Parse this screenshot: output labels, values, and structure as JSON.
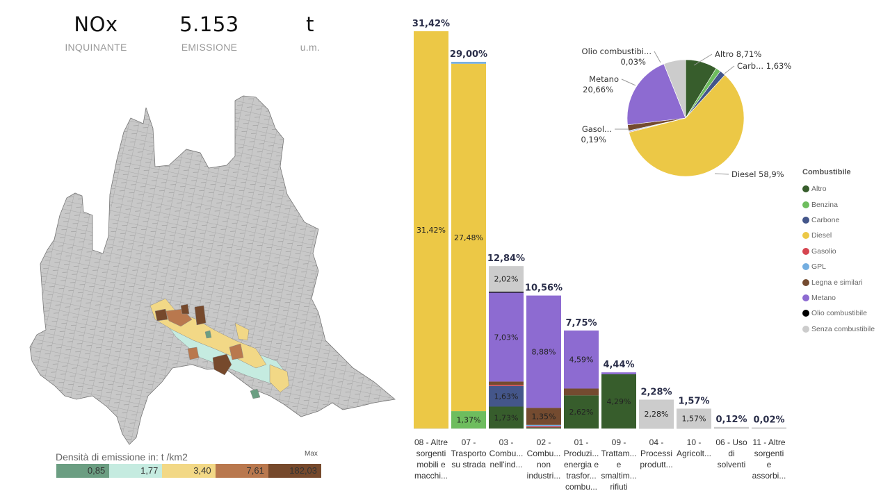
{
  "kpis": [
    {
      "value": "NOx",
      "label": "INQUINANTE"
    },
    {
      "value": "5.153",
      "label": "EMISSIONE"
    },
    {
      "value": "t",
      "label": "u.m."
    }
  ],
  "map": {
    "region": "Lombardia",
    "legend_title": "Densità di emissione in:  t /km2",
    "legend_max_label": "Max",
    "classes": [
      {
        "value": "0,85",
        "color": "#6b9e82"
      },
      {
        "value": "1,77",
        "color": "#c5ebe0"
      },
      {
        "value": "3,40",
        "color": "#f2d886"
      },
      {
        "value": "7,61",
        "color": "#b9784e"
      },
      {
        "value": "182,03",
        "color": "#76492c"
      }
    ],
    "base_color": "#c8c8c8"
  },
  "fuels": {
    "legend_title": "Combustibile",
    "items": [
      {
        "name": "Altro",
        "color": "#375d2c"
      },
      {
        "name": "Benzina",
        "color": "#6ebd5e"
      },
      {
        "name": "Carbone",
        "color": "#44568a"
      },
      {
        "name": "Diesel",
        "color": "#ecc846"
      },
      {
        "name": "Gasolio",
        "color": "#d64550"
      },
      {
        "name": "GPL",
        "color": "#74aee0"
      },
      {
        "name": "Legna e similari",
        "color": "#744b30"
      },
      {
        "name": "Metano",
        "color": "#8d6bd1"
      },
      {
        "name": "Olio combustibile",
        "color": "#000000"
      },
      {
        "name": "Senza combustibile",
        "color": "#cccccc"
      }
    ]
  },
  "chart_data": [
    {
      "type": "bar",
      "stacked": true,
      "title": "",
      "xlabel": "",
      "ylabel": "",
      "ylim": [
        0,
        31.42
      ],
      "categories": [
        "08 - Altre sorgenti mobili e macchi...",
        "07 - Trasporto su strada",
        "03 - Combu... nell'ind...",
        "02 - Combu... non industri...",
        "01 - Produzi... energia e trasfor... combu...",
        "09 - Trattam... e smaltim... rifiuti",
        "04 - Processi produtt...",
        "10 - Agricolt...",
        "06 - Uso di solventi",
        "11 - Altre sorgenti e assorbi..."
      ],
      "category_lines": [
        [
          "08 - Altre",
          "sorgenti",
          "mobili e",
          "macchi..."
        ],
        [
          "07 -",
          "Trasporto",
          "su strada"
        ],
        [
          "03 -",
          "Combu...",
          "nell'ind..."
        ],
        [
          "02 -",
          "Combu...",
          "non",
          "industri..."
        ],
        [
          "01 -",
          "Produzi...",
          "energia e",
          "trasfor...",
          "combu..."
        ],
        [
          "09 -",
          "Trattam...",
          "e",
          "smaltim...",
          "rifiuti"
        ],
        [
          "04 -",
          "Processi",
          "produtt..."
        ],
        [
          "10 -",
          "Agricolt..."
        ],
        [
          "06 - Uso",
          "di",
          "solventi"
        ],
        [
          "11 - Altre",
          "sorgenti",
          "e",
          "assorbi..."
        ]
      ],
      "totals": [
        31.42,
        29.0,
        12.84,
        10.56,
        7.75,
        4.44,
        2.28,
        1.57,
        0.12,
        0.02
      ],
      "total_labels": [
        "31,42%",
        "29,00%",
        "12,84%",
        "10,56%",
        "7,75%",
        "4,44%",
        "2,28%",
        "1,57%",
        "0,12%",
        "0,02%"
      ],
      "series": [
        {
          "name": "Altro",
          "values": [
            0,
            0,
            1.73,
            0.05,
            2.62,
            4.29,
            0,
            0,
            0,
            0
          ],
          "labels": [
            "",
            "",
            "1,73%",
            "",
            "2,62%",
            "4,29%",
            "",
            "",
            "",
            ""
          ]
        },
        {
          "name": "Benzina",
          "values": [
            0,
            1.37,
            0,
            0,
            0,
            0,
            0,
            0,
            0,
            0
          ],
          "labels": [
            "",
            "1,37%",
            "",
            "",
            "",
            "",
            "",
            "",
            "",
            ""
          ]
        },
        {
          "name": "Carbone",
          "values": [
            0,
            0,
            1.63,
            0,
            0,
            0,
            0,
            0,
            0,
            0
          ],
          "labels": [
            "",
            "",
            "1,63%",
            "",
            "",
            "",
            "",
            "",
            "",
            ""
          ]
        },
        {
          "name": "Diesel",
          "values": [
            31.42,
            27.48,
            0,
            0,
            0,
            0,
            0,
            0,
            0,
            0
          ],
          "labels": [
            "31,42%",
            "27,48%",
            "",
            "",
            "",
            "",
            "",
            "",
            "",
            ""
          ]
        },
        {
          "name": "Gasolio",
          "values": [
            0,
            0,
            0.06,
            0.08,
            0,
            0,
            0,
            0,
            0,
            0
          ],
          "labels": [
            "",
            "",
            "",
            "",
            "",
            "",
            "",
            "",
            "",
            ""
          ]
        },
        {
          "name": "GPL",
          "values": [
            0,
            0.15,
            0,
            0.12,
            0,
            0,
            0,
            0,
            0,
            0
          ],
          "labels": [
            "",
            "",
            "",
            "",
            "",
            "",
            "",
            "",
            "",
            ""
          ]
        },
        {
          "name": "Legna e similari",
          "values": [
            0,
            0,
            0.27,
            1.35,
            0.54,
            0,
            0,
            0,
            0,
            0
          ],
          "labels": [
            "",
            "",
            "",
            "1,35%",
            "",
            "",
            "",
            "",
            "",
            ""
          ]
        },
        {
          "name": "Metano",
          "values": [
            0,
            0,
            7.03,
            8.88,
            4.59,
            0.15,
            0,
            0,
            0,
            0
          ],
          "labels": [
            "",
            "",
            "7,03%",
            "8,88%",
            "4,59%",
            "",
            "",
            "",
            "",
            ""
          ]
        },
        {
          "name": "Olio combustibile",
          "values": [
            0,
            0,
            0.03,
            0,
            0,
            0,
            0,
            0,
            0,
            0
          ],
          "labels": [
            "",
            "",
            "",
            "",
            "",
            "",
            "",
            "",
            "",
            ""
          ]
        },
        {
          "name": "Senza combustibile",
          "values": [
            0,
            0,
            2.02,
            0,
            0,
            0,
            2.28,
            1.57,
            0.12,
            0.02
          ],
          "labels": [
            "",
            "",
            "2,02%",
            "",
            "",
            "",
            "2,28%",
            "1,57%",
            "",
            ""
          ]
        }
      ]
    },
    {
      "type": "pie",
      "title": "",
      "legend_position": "right",
      "slices": [
        {
          "name": "Altro",
          "value": 8.71,
          "label": "Altro 8,71%"
        },
        {
          "name": "Benzina",
          "value": 1.37,
          "label": ""
        },
        {
          "name": "Carbone",
          "value": 1.63,
          "label": "Carb... 1,63%"
        },
        {
          "name": "Diesel",
          "value": 58.9,
          "label": "Diesel 58,9%"
        },
        {
          "name": "Gasolio",
          "value": 0.19,
          "label": "Gasol... 0,19%"
        },
        {
          "name": "GPL",
          "value": 0.27,
          "label": ""
        },
        {
          "name": "Legna e similari",
          "value": 1.62,
          "label": ""
        },
        {
          "name": "Metano",
          "value": 20.66,
          "label": "Metano 20,66%"
        },
        {
          "name": "Olio combustibile",
          "value": 0.03,
          "label": "Olio combustibi... 0,03%"
        },
        {
          "name": "Senza combustibile",
          "value": 6.01,
          "label": ""
        }
      ]
    }
  ]
}
